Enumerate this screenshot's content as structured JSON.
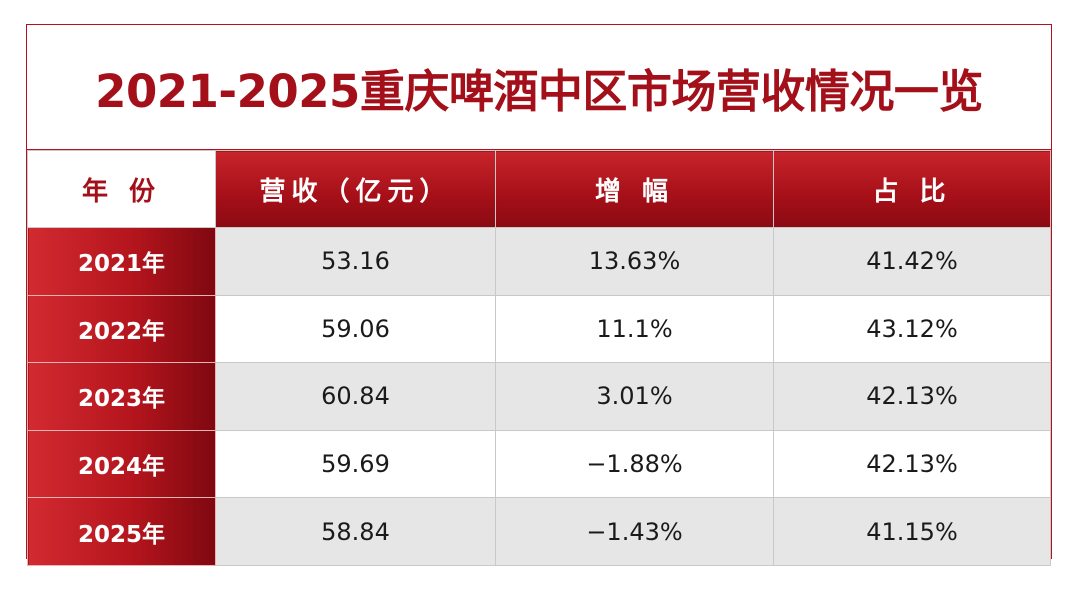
{
  "header": {
    "title": "2021-2025重庆啤酒中区市场营收情况一览"
  },
  "table": {
    "columns": [
      "年 份",
      "营收（亿元）",
      "增 幅",
      "占 比"
    ],
    "rows": [
      [
        "2021年",
        "53.16",
        "13.63%",
        "41.42%"
      ],
      [
        "2022年",
        "59.06",
        "11.1%",
        "43.12%"
      ],
      [
        "2023年",
        "60.84",
        "3.01%",
        "42.13%"
      ],
      [
        "2024年",
        "59.69",
        "−1.88%",
        "42.13%"
      ],
      [
        "2025年",
        "58.84",
        "−1.43%",
        "41.15%"
      ]
    ]
  }
}
